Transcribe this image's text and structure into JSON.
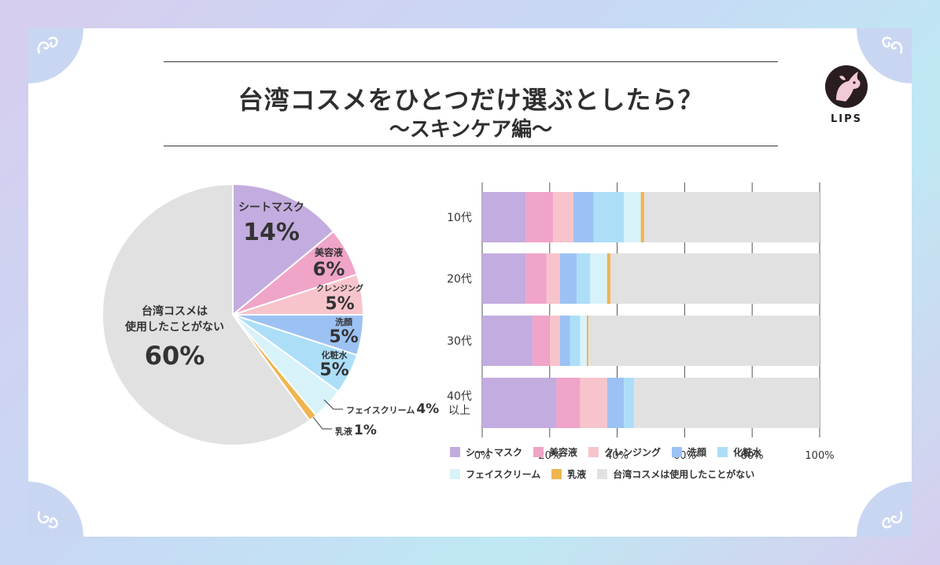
{
  "title": {
    "main": "台湾コスメをひとつだけ選ぶとしたら？",
    "sub": "〜スキンケア編〜"
  },
  "brand": {
    "logo_text": "LIPS"
  },
  "colors": {
    "sheet_mask": "#c3acdf",
    "serum": "#f0a4c8",
    "cleansing": "#f8c4cc",
    "face_wash": "#9cc2f4",
    "toner": "#acdef8",
    "face_cream": "#d8f2fa",
    "milk_lotion": "#f0b451",
    "none": "#e1e1e1"
  },
  "chart_data": [
    {
      "type": "pie",
      "title": "",
      "slices": [
        {
          "label": "シートマスク",
          "value": 14,
          "value_label": "14%",
          "color": "#c3acdf"
        },
        {
          "label": "美容液",
          "value": 6,
          "value_label": "6%",
          "color": "#f0a4c8"
        },
        {
          "label": "クレンジング",
          "value": 5,
          "value_label": "5%",
          "color": "#f8c4cc"
        },
        {
          "label": "洗顔",
          "value": 5,
          "value_label": "5%",
          "color": "#9cc2f4"
        },
        {
          "label": "化粧水",
          "value": 5,
          "value_label": "5%",
          "color": "#acdef8"
        },
        {
          "label": "フェイスクリーム",
          "value": 4,
          "value_label": "4%",
          "color": "#d8f2fa"
        },
        {
          "label": "乳液",
          "value": 1,
          "value_label": "1%",
          "color": "#f0b451"
        },
        {
          "label_lines": [
            "台湾コスメは",
            "使用したことがない"
          ],
          "label": "台湾コスメは使用したことがない",
          "value": 60,
          "value_label": "60%",
          "color": "#e1e1e1"
        }
      ]
    },
    {
      "type": "bar",
      "orientation": "horizontal",
      "stacked": true,
      "categories": [
        "10代",
        "20代",
        "30代",
        "40代以上"
      ],
      "category_lines": [
        [
          "10代"
        ],
        [
          "20代"
        ],
        [
          "30代"
        ],
        [
          "40代",
          "以上"
        ]
      ],
      "xlim": [
        0,
        100
      ],
      "xticks": [
        "0%",
        "20%",
        "40%",
        "60%",
        "80%",
        "100%"
      ],
      "grid": true,
      "legend_position": "bottom",
      "series": [
        {
          "name": "シートマスク",
          "color": "#c3acdf",
          "values": [
            13,
            13,
            15,
            22
          ]
        },
        {
          "name": "美容液",
          "color": "#f0a4c8",
          "values": [
            8,
            6,
            5,
            7
          ]
        },
        {
          "name": "クレンジング",
          "color": "#f8c4cc",
          "values": [
            6,
            4,
            3,
            8
          ]
        },
        {
          "name": "洗顔",
          "color": "#9cc2f4",
          "values": [
            6,
            5,
            3,
            5
          ]
        },
        {
          "name": "化粧水",
          "color": "#acdef8",
          "values": [
            9,
            4,
            3,
            3
          ]
        },
        {
          "name": "フェイスクリーム",
          "color": "#d8f2fa",
          "values": [
            5,
            5,
            2,
            0
          ]
        },
        {
          "name": "乳液",
          "color": "#f0b451",
          "values": [
            1,
            1,
            0.5,
            0
          ]
        },
        {
          "name": "台湾コスメは使用したことがない",
          "color": "#e1e1e1",
          "values": [
            52,
            62,
            68.5,
            55
          ]
        }
      ]
    }
  ]
}
